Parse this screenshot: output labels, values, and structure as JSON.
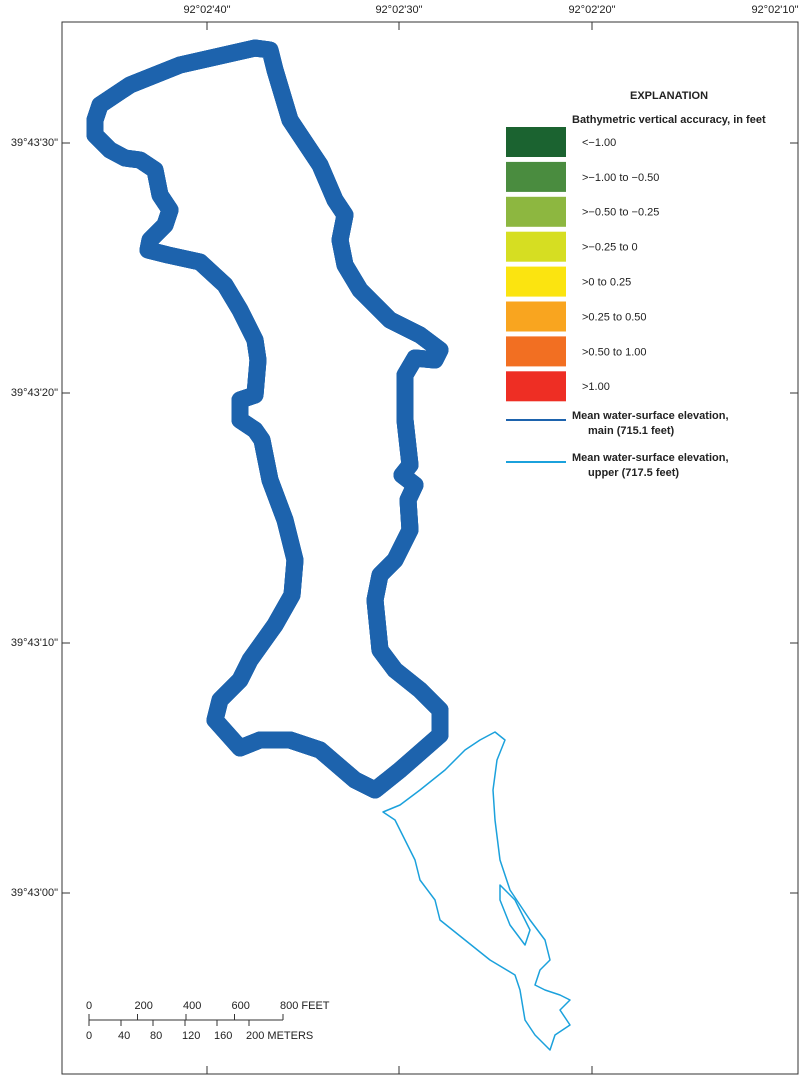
{
  "map": {
    "longitude_labels": [
      "92°02'40\"",
      "92°02'30\"",
      "92°02'20\"",
      "92°02'10\""
    ],
    "latitude_labels": [
      "39°43'30\"",
      "39°43'20\"",
      "39°43'10\"",
      "39°43'00\""
    ],
    "legend": {
      "title": "EXPLANATION",
      "subtitle": "Bathymetric vertical accuracy, in feet",
      "classes": [
        {
          "label": "<−1.00",
          "color": "#1b6330"
        },
        {
          "label": ">−1.00 to −0.50",
          "color": "#4a8c3f"
        },
        {
          "label": ">−0.50 to −0.25",
          "color": "#8db740"
        },
        {
          "label": ">−0.25 to 0",
          "color": "#d6de22"
        },
        {
          "label": ">0 to 0.25",
          "color": "#fbe410"
        },
        {
          "label": ">0.25 to 0.50",
          "color": "#f9a51f"
        },
        {
          "label": ">0.50 to 1.00",
          "color": "#f26f22"
        },
        {
          "label": ">1.00",
          "color": "#ee2e24"
        }
      ],
      "lines": [
        {
          "label_lines": [
            "Mean water-surface elevation,",
            "main (715.1 feet)"
          ],
          "color": "#1d63ad"
        },
        {
          "label_lines": [
            "Mean water-surface elevation,",
            "upper (717.5 feet)"
          ],
          "color": "#1ba1dc"
        }
      ]
    },
    "scale_bar": {
      "feet_labels": [
        "0",
        "200",
        "400",
        "600",
        "800 FEET"
      ],
      "meter_labels": [
        "0",
        "40",
        "80",
        "120",
        "160",
        "200 METERS"
      ]
    }
  }
}
